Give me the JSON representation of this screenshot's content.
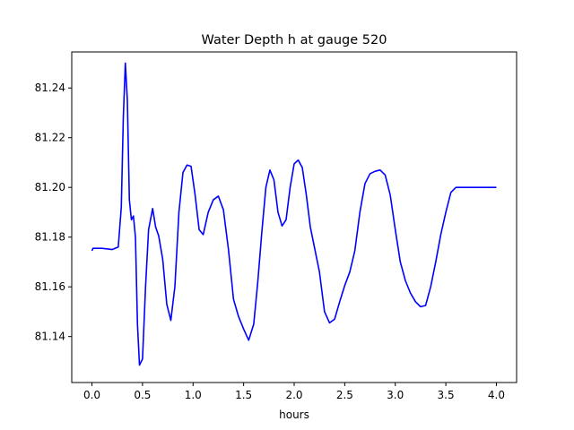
{
  "chart_data": {
    "type": "line",
    "title": "Water Depth h at gauge 520",
    "xlabel": "hours",
    "ylabel": "",
    "xlim": [
      -0.2,
      4.2
    ],
    "ylim": [
      81.1215,
      81.2545
    ],
    "xticks": [
      0.0,
      0.5,
      1.0,
      1.5,
      2.0,
      2.5,
      3.0,
      3.5,
      4.0
    ],
    "xtick_labels": [
      "0.0",
      "0.5",
      "1.0",
      "1.5",
      "2.0",
      "2.5",
      "3.0",
      "3.5",
      "4.0"
    ],
    "yticks": [
      81.14,
      81.16,
      81.18,
      81.2,
      81.22,
      81.24
    ],
    "ytick_labels": [
      "81.14",
      "81.16",
      "81.18",
      "81.20",
      "81.22",
      "81.24"
    ],
    "grid": false,
    "legend": "none",
    "series": [
      {
        "color": "#0000ff",
        "x": [
          0.0,
          0.01,
          0.1,
          0.2,
          0.26,
          0.29,
          0.31,
          0.33,
          0.35,
          0.37,
          0.39,
          0.41,
          0.43,
          0.45,
          0.47,
          0.5,
          0.53,
          0.56,
          0.6,
          0.63,
          0.66,
          0.7,
          0.74,
          0.78,
          0.82,
          0.86,
          0.9,
          0.94,
          0.98,
          1.02,
          1.06,
          1.1,
          1.15,
          1.2,
          1.25,
          1.3,
          1.35,
          1.4,
          1.45,
          1.5,
          1.55,
          1.6,
          1.64,
          1.68,
          1.72,
          1.76,
          1.8,
          1.84,
          1.88,
          1.92,
          1.96,
          2.0,
          2.04,
          2.08,
          2.12,
          2.16,
          2.2,
          2.25,
          2.3,
          2.35,
          2.4,
          2.45,
          2.5,
          2.55,
          2.6,
          2.65,
          2.7,
          2.75,
          2.8,
          2.85,
          2.9,
          2.95,
          3.0,
          3.05,
          3.1,
          3.15,
          3.2,
          3.25,
          3.3,
          3.35,
          3.4,
          3.45,
          3.5,
          3.55,
          3.6,
          3.65,
          3.7,
          3.75,
          3.8,
          3.85,
          3.9,
          3.95,
          4.0
        ],
        "y": [
          81.1745,
          81.1755,
          81.1755,
          81.175,
          81.176,
          81.192,
          81.228,
          81.25,
          81.235,
          81.195,
          81.187,
          81.1885,
          81.18,
          81.145,
          81.1285,
          81.131,
          81.16,
          81.183,
          81.1915,
          81.184,
          81.1805,
          81.171,
          81.153,
          81.1465,
          81.16,
          81.19,
          81.206,
          81.209,
          81.2085,
          81.197,
          81.183,
          81.181,
          81.19,
          81.195,
          81.1965,
          81.191,
          81.175,
          81.155,
          81.148,
          81.143,
          81.1385,
          81.145,
          81.162,
          81.182,
          81.2,
          81.207,
          81.203,
          81.19,
          81.1845,
          81.187,
          81.2,
          81.2095,
          81.211,
          81.208,
          81.197,
          81.184,
          81.176,
          81.166,
          81.15,
          81.1455,
          81.147,
          81.154,
          81.1605,
          81.166,
          81.1745,
          81.19,
          81.2015,
          81.2055,
          81.2065,
          81.207,
          81.205,
          81.197,
          81.183,
          81.17,
          81.1625,
          81.1575,
          81.154,
          81.152,
          81.1525,
          81.16,
          81.17,
          81.181,
          81.19,
          81.198,
          81.2,
          81.2,
          81.2,
          81.2,
          81.2,
          81.2,
          81.2,
          81.2,
          81.2
        ]
      }
    ]
  }
}
